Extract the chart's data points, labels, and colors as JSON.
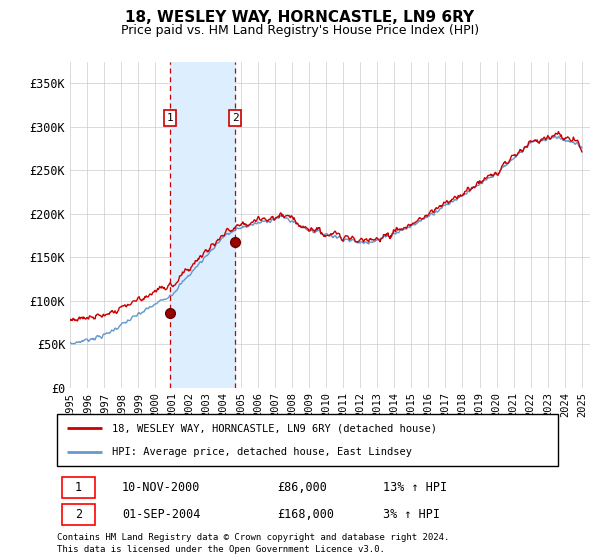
{
  "title": "18, WESLEY WAY, HORNCASTLE, LN9 6RY",
  "subtitle": "Price paid vs. HM Land Registry's House Price Index (HPI)",
  "title_fontsize": 11,
  "subtitle_fontsize": 9,
  "ylim": [
    0,
    375000
  ],
  "yticks": [
    0,
    50000,
    100000,
    150000,
    200000,
    250000,
    300000,
    350000
  ],
  "ytick_labels": [
    "£0",
    "£50K",
    "£100K",
    "£150K",
    "£200K",
    "£250K",
    "£300K",
    "£350K"
  ],
  "xlim_start": 1995.0,
  "xlim_end": 2025.5,
  "xtick_years": [
    1995,
    1996,
    1997,
    1998,
    1999,
    2000,
    2001,
    2002,
    2003,
    2004,
    2005,
    2006,
    2007,
    2008,
    2009,
    2010,
    2011,
    2012,
    2013,
    2014,
    2015,
    2016,
    2017,
    2018,
    2019,
    2020,
    2021,
    2022,
    2023,
    2024,
    2025
  ],
  "transaction1": {
    "date_label": "10-NOV-2000",
    "year": 2000.87,
    "price": 86000,
    "label": "1",
    "hpi_pct": "13%"
  },
  "transaction2": {
    "date_label": "01-SEP-2004",
    "year": 2004.67,
    "price": 168000,
    "label": "2",
    "hpi_pct": "3%"
  },
  "line_color_red": "#cc0000",
  "line_color_blue": "#6699cc",
  "shade_color": "#ddeeff",
  "grid_color": "#cccccc",
  "background_color": "#ffffff",
  "legend_line1": "18, WESLEY WAY, HORNCASTLE, LN9 6RY (detached house)",
  "legend_line2": "HPI: Average price, detached house, East Lindsey",
  "footer1": "Contains HM Land Registry data © Crown copyright and database right 2024.",
  "footer2": "This data is licensed under the Open Government Licence v3.0."
}
